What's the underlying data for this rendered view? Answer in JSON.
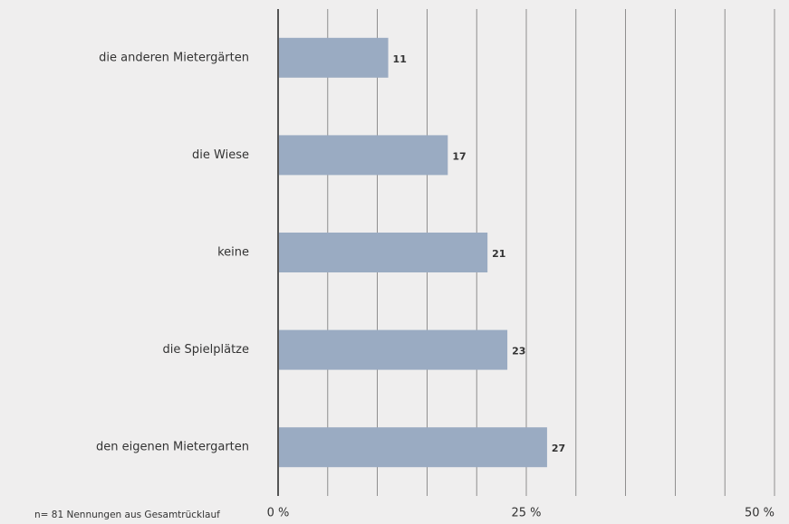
{
  "chart_data": {
    "type": "bar",
    "orientation": "horizontal",
    "categories": [
      "die anderen Mietergärten",
      "die Wiese",
      "keine",
      "die Spielplätze",
      "den eigenen Mietergarten"
    ],
    "values": [
      11,
      17,
      21,
      23,
      27
    ],
    "color": "#9aabc2",
    "xlim": [
      0,
      50
    ],
    "xticks": [
      {
        "value": 0,
        "label": "0 %"
      },
      {
        "value": 25,
        "label": "25 %"
      },
      {
        "value": 50,
        "label": "50 %"
      }
    ],
    "minor_xticks": [
      5,
      10,
      15,
      20,
      30,
      35,
      40,
      45
    ],
    "grid": true,
    "note": "n= 81 Nennungen aus Gesamtrücklauf"
  }
}
